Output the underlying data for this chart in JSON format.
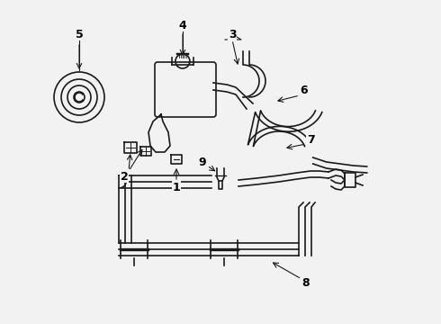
{
  "background_color": "#f2f2f2",
  "line_color": "#1a1a1a",
  "label_color": "#000000",
  "fig_w": 4.9,
  "fig_h": 3.6,
  "dpi": 100
}
